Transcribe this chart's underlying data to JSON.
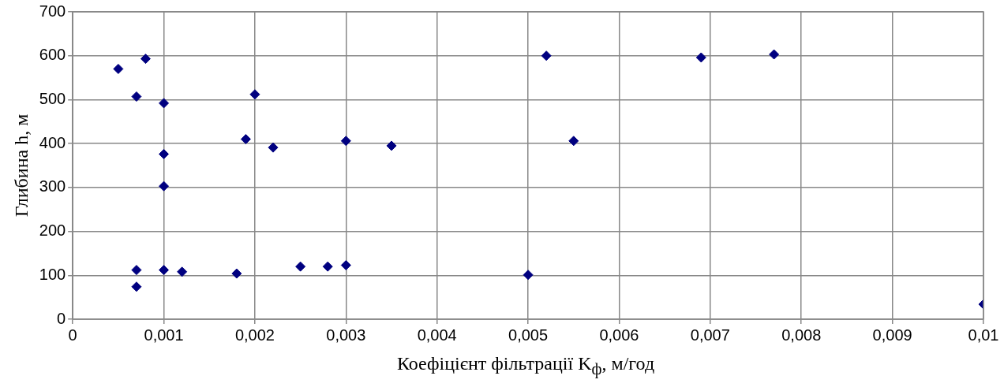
{
  "chart_data": {
    "type": "scatter",
    "xlabel": "Коефіцієнт фільтрації K$_{ф}$, м/год",
    "ylabel": "Глибина h, м",
    "xlim": [
      0,
      0.01
    ],
    "ylim": [
      0,
      700
    ],
    "xticks": [
      {
        "value": 0,
        "label": "0"
      },
      {
        "value": 0.001,
        "label": "0,001"
      },
      {
        "value": 0.002,
        "label": "0,002"
      },
      {
        "value": 0.003,
        "label": "0,003"
      },
      {
        "value": 0.004,
        "label": "0,004"
      },
      {
        "value": 0.005,
        "label": "0,005"
      },
      {
        "value": 0.006,
        "label": "0,006"
      },
      {
        "value": 0.007,
        "label": "0,007"
      },
      {
        "value": 0.008,
        "label": "0,008"
      },
      {
        "value": 0.009,
        "label": "0,009"
      },
      {
        "value": 0.01,
        "label": "0,01"
      }
    ],
    "yticks": [
      0,
      100,
      200,
      300,
      400,
      500,
      600,
      700
    ],
    "grid": true,
    "marker": "diamond",
    "legend": false,
    "series": [
      {
        "color": "#000080",
        "x": [
          0.0005,
          0.0008,
          0.0007,
          0.001,
          0.002,
          0.0019,
          0.0022,
          0.003,
          0.0035,
          0.001,
          0.001,
          0.0007,
          0.0007,
          0.001,
          0.0012,
          0.0018,
          0.0025,
          0.0028,
          0.003,
          0.005,
          0.0052,
          0.0055,
          0.0069,
          0.0077,
          0.01
        ],
        "values": [
          570,
          593,
          507,
          492,
          512,
          410,
          391,
          406,
          395,
          376,
          303,
          112,
          74,
          112,
          108,
          104,
          120,
          120,
          123,
          101,
          600,
          406,
          596,
          603,
          34
        ]
      }
    ]
  }
}
